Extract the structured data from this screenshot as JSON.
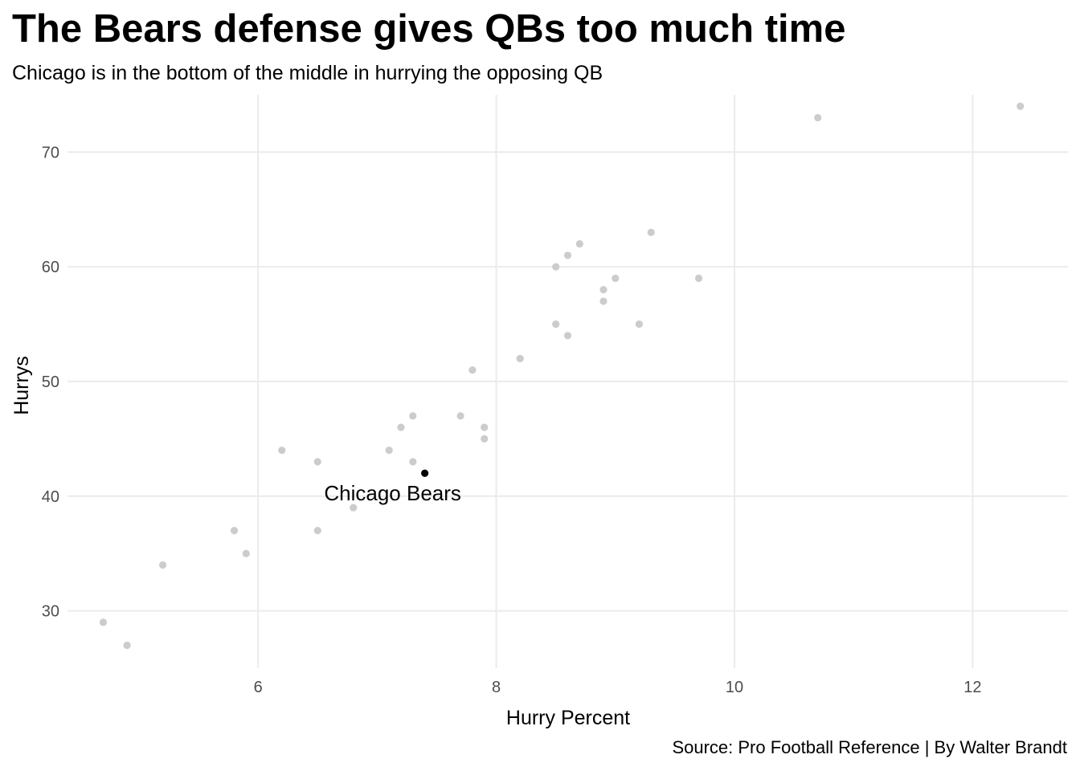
{
  "chart_data": {
    "type": "scatter",
    "title": "The Bears defense gives QBs too much time",
    "subtitle": "Chicago is in the bottom of the middle in hurrying the opposing QB",
    "caption": "Source: Pro Football Reference | By Walter Brandt",
    "xlabel": "Hurry Percent",
    "ylabel": "Hurrys",
    "xlim": [
      4.4,
      12.8
    ],
    "ylim": [
      25,
      75
    ],
    "x_ticks": [
      6,
      8,
      10,
      12
    ],
    "y_ticks": [
      30,
      40,
      50,
      60,
      70
    ],
    "grid": true,
    "colors": {
      "points": "#cccccc",
      "highlight": "#000000",
      "grid": "#ebebeb",
      "tick_text": "#4d4d4d"
    },
    "points": [
      {
        "x": 12.4,
        "y": 74
      },
      {
        "x": 10.7,
        "y": 73
      },
      {
        "x": 9.3,
        "y": 63
      },
      {
        "x": 8.7,
        "y": 62
      },
      {
        "x": 8.6,
        "y": 61
      },
      {
        "x": 8.5,
        "y": 60
      },
      {
        "x": 9.0,
        "y": 59
      },
      {
        "x": 9.7,
        "y": 59
      },
      {
        "x": 8.9,
        "y": 58
      },
      {
        "x": 8.9,
        "y": 57
      },
      {
        "x": 8.5,
        "y": 55
      },
      {
        "x": 9.2,
        "y": 55
      },
      {
        "x": 8.6,
        "y": 54
      },
      {
        "x": 8.2,
        "y": 52
      },
      {
        "x": 7.8,
        "y": 51
      },
      {
        "x": 7.3,
        "y": 47
      },
      {
        "x": 7.7,
        "y": 47
      },
      {
        "x": 7.2,
        "y": 46
      },
      {
        "x": 7.9,
        "y": 46
      },
      {
        "x": 7.9,
        "y": 45
      },
      {
        "x": 6.2,
        "y": 44
      },
      {
        "x": 7.1,
        "y": 44
      },
      {
        "x": 6.5,
        "y": 43
      },
      {
        "x": 7.3,
        "y": 43
      },
      {
        "x": 6.8,
        "y": 39
      },
      {
        "x": 5.8,
        "y": 37
      },
      {
        "x": 6.5,
        "y": 37
      },
      {
        "x": 5.9,
        "y": 35
      },
      {
        "x": 5.2,
        "y": 34
      },
      {
        "x": 4.7,
        "y": 29
      },
      {
        "x": 4.9,
        "y": 27
      }
    ],
    "highlight": {
      "label": "Chicago Bears",
      "x": 7.4,
      "y": 42
    }
  }
}
